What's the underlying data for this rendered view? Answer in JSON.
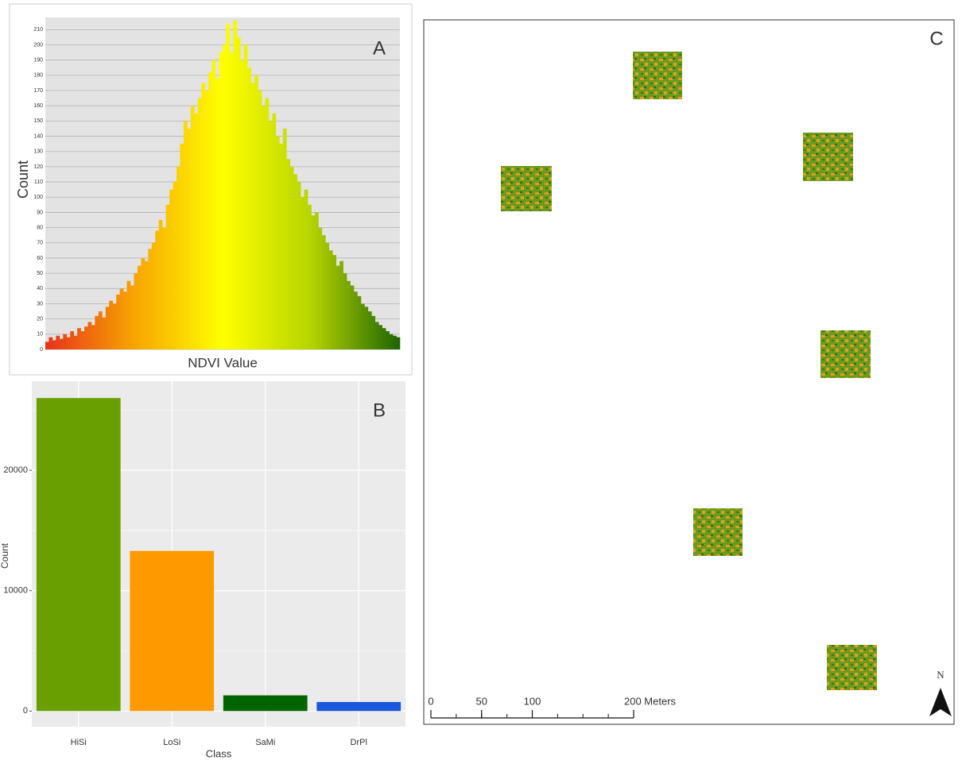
{
  "chart_data": [
    {
      "type": "histogram",
      "label": "A",
      "xlabel": "NDVI Value",
      "ylabel": "Count",
      "values": [
        5,
        8,
        6,
        9,
        7,
        10,
        8,
        12,
        9,
        14,
        12,
        15,
        18,
        16,
        22,
        25,
        21,
        28,
        32,
        30,
        36,
        40,
        38,
        45,
        42,
        50,
        55,
        60,
        58,
        66,
        70,
        78,
        85,
        80,
        95,
        105,
        110,
        120,
        135,
        150,
        145,
        160,
        155,
        165,
        175,
        170,
        182,
        190,
        178,
        195,
        200,
        214,
        195,
        216,
        205,
        190,
        200,
        185,
        175,
        180,
        170,
        160,
        165,
        150,
        155,
        140,
        135,
        145,
        125,
        120,
        115,
        110,
        100,
        105,
        95,
        88,
        90,
        80,
        75,
        70,
        65,
        62,
        55,
        58,
        50,
        45,
        42,
        38,
        35,
        30,
        28,
        25,
        22,
        18,
        16,
        14,
        12,
        10,
        9,
        8
      ],
      "colors": [
        "#e8321b",
        "#f7a400",
        "#ffff00",
        "#b5d400",
        "#1e6400"
      ],
      "ylim": [
        0,
        218
      ],
      "yticks": [
        0,
        10,
        20,
        30,
        40,
        50,
        60,
        70,
        80,
        90,
        100,
        110,
        120,
        130,
        140,
        150,
        160,
        170,
        180,
        190,
        200,
        210
      ],
      "grid": true
    },
    {
      "type": "bar",
      "label": "B",
      "xlabel": "Class",
      "ylabel": "Count",
      "categories": [
        "HiSi",
        "LoSi",
        "SaMi",
        "DrPl"
      ],
      "values": [
        26000,
        13300,
        1300,
        750
      ],
      "colors": [
        "#6a9f00",
        "#ff9900",
        "#006400",
        "#1a56d9"
      ],
      "ylim": [
        -1300,
        27400
      ],
      "yticks": [
        0,
        10000,
        20000
      ],
      "grid": true
    },
    {
      "type": "map",
      "label": "C",
      "north": "N",
      "xlim": [
        0,
        200
      ],
      "xticks": [
        0,
        50,
        100,
        {
          "value": 200,
          "label": "200 Meters"
        }
      ]
    }
  ]
}
